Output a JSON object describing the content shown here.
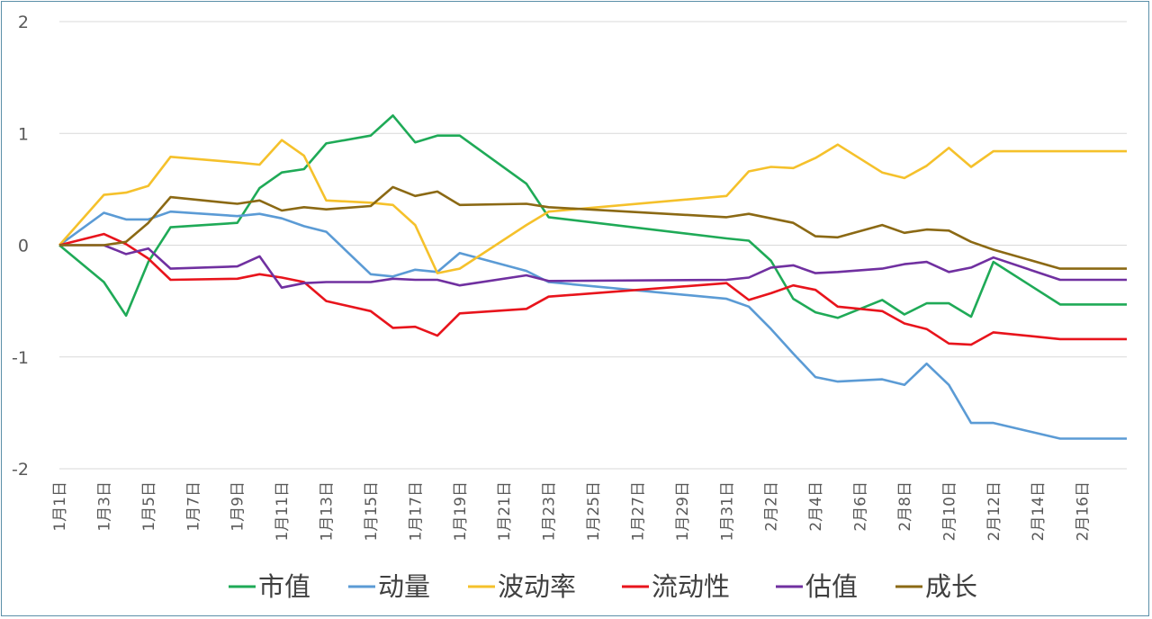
{
  "chart_data": {
    "type": "line",
    "title": "",
    "xlabel": "",
    "ylabel": "",
    "ylim": [
      -2,
      2
    ],
    "yticks": [
      2,
      1,
      0,
      -1,
      -2
    ],
    "grid": true,
    "legend": "bottom",
    "x_tick_labels": [
      "1月1日",
      "1月3日",
      "1月5日",
      "1月7日",
      "1月9日",
      "1月11日",
      "1月13日",
      "1月15日",
      "1月17日",
      "1月19日",
      "1月21日",
      "1月23日",
      "1月25日",
      "1月27日",
      "1月29日",
      "1月31日",
      "2月2日",
      "2月4日",
      "2月6日",
      "2月8日",
      "2月10日",
      "2月12日",
      "2月14日",
      "2月16日"
    ],
    "x": [
      0,
      2,
      3,
      4,
      5,
      8,
      9,
      10,
      11,
      12,
      14,
      15,
      16,
      17,
      18,
      21,
      22,
      30,
      31,
      32,
      33,
      34,
      35,
      37,
      38,
      39,
      40,
      41,
      42,
      45,
      46,
      47,
      48
    ],
    "series": [
      {
        "name": "市值",
        "color": "#1faa57",
        "values": [
          0,
          -0.33,
          -0.63,
          -0.15,
          0.16,
          0.2,
          0.51,
          0.65,
          0.68,
          0.91,
          0.98,
          1.16,
          0.92,
          0.98,
          0.98,
          0.55,
          0.25,
          0.06,
          0.04,
          -0.14,
          -0.48,
          -0.6,
          -0.65,
          -0.49,
          -0.62,
          -0.52,
          -0.52,
          -0.64,
          -0.15,
          -0.53,
          -0.53,
          -0.53,
          -0.53
        ]
      },
      {
        "name": "动量",
        "color": "#5b9bd5",
        "values": [
          0,
          0.29,
          0.23,
          0.23,
          0.3,
          0.26,
          0.28,
          0.24,
          0.17,
          0.12,
          -0.26,
          -0.28,
          -0.22,
          -0.24,
          -0.07,
          -0.23,
          -0.33,
          -0.48,
          -0.55,
          -0.75,
          -0.97,
          -1.18,
          -1.22,
          -1.2,
          -1.25,
          -1.06,
          -1.25,
          -1.59,
          -1.59,
          -1.73,
          -1.73,
          -1.73,
          -1.73
        ]
      },
      {
        "name": "波动率",
        "color": "#f5c12b",
        "values": [
          0,
          0.45,
          0.47,
          0.53,
          0.79,
          0.74,
          0.72,
          0.94,
          0.8,
          0.4,
          0.38,
          0.36,
          0.18,
          -0.25,
          -0.21,
          0.18,
          0.3,
          0.44,
          0.66,
          0.7,
          0.69,
          0.78,
          0.9,
          0.65,
          0.6,
          0.71,
          0.87,
          0.7,
          0.84,
          0.84,
          0.84,
          0.84,
          0.84
        ]
      },
      {
        "name": "流动性",
        "color": "#e8141c",
        "values": [
          0,
          0.1,
          0.01,
          -0.12,
          -0.31,
          -0.3,
          -0.26,
          -0.29,
          -0.33,
          -0.5,
          -0.59,
          -0.74,
          -0.73,
          -0.81,
          -0.61,
          -0.57,
          -0.46,
          -0.34,
          -0.49,
          -0.43,
          -0.36,
          -0.4,
          -0.55,
          -0.59,
          -0.7,
          -0.75,
          -0.88,
          -0.89,
          -0.78,
          -0.84,
          -0.84,
          -0.84,
          -0.84
        ]
      },
      {
        "name": "估值",
        "color": "#7030a0",
        "values": [
          0,
          0,
          -0.08,
          -0.03,
          -0.21,
          -0.19,
          -0.1,
          -0.38,
          -0.34,
          -0.33,
          -0.33,
          -0.3,
          -0.31,
          -0.31,
          -0.36,
          -0.27,
          -0.32,
          -0.31,
          -0.29,
          -0.2,
          -0.18,
          -0.25,
          -0.24,
          -0.21,
          -0.17,
          -0.15,
          -0.24,
          -0.2,
          -0.11,
          -0.31,
          -0.31,
          -0.31,
          -0.31
        ]
      },
      {
        "name": "成长",
        "color": "#8b6914",
        "values": [
          0,
          0,
          0.03,
          0.2,
          0.43,
          0.37,
          0.4,
          0.31,
          0.34,
          0.32,
          0.35,
          0.52,
          0.44,
          0.48,
          0.36,
          0.37,
          0.34,
          0.25,
          0.28,
          0.24,
          0.2,
          0.08,
          0.07,
          0.18,
          0.11,
          0.14,
          0.13,
          0.03,
          -0.04,
          -0.21,
          -0.21,
          -0.21,
          -0.21
        ]
      }
    ]
  }
}
